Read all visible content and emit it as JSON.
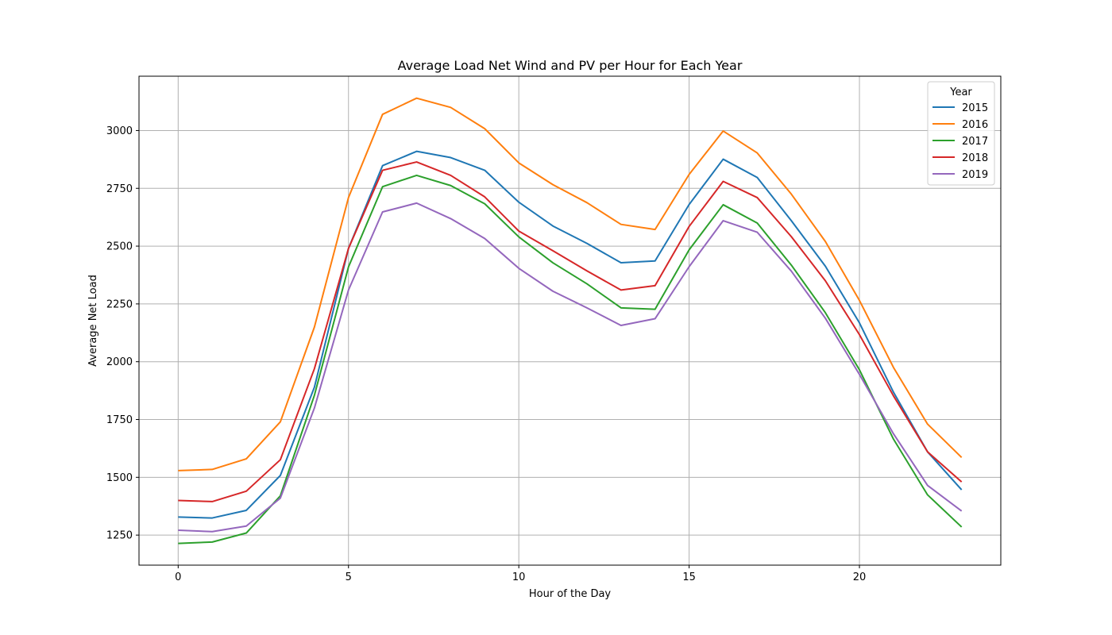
{
  "chart_data": {
    "type": "line",
    "title": "Average Load Net Wind and PV per Hour for Each Year",
    "xlabel": "Hour of the Day",
    "ylabel": "Average Net Load",
    "xlim": [
      -1.15,
      24.15
    ],
    "ylim": [
      1120,
      3235
    ],
    "x_ticks": [
      0,
      5,
      10,
      15,
      20
    ],
    "y_ticks": [
      1250,
      1500,
      1750,
      2000,
      2250,
      2500,
      2750,
      3000
    ],
    "grid": true,
    "legend": {
      "title": "Year",
      "placement": "top-right"
    },
    "x": [
      0,
      1,
      2,
      3,
      4,
      5,
      6,
      7,
      8,
      9,
      10,
      11,
      12,
      13,
      14,
      15,
      16,
      17,
      18,
      19,
      20,
      21,
      22,
      23
    ],
    "series": [
      {
        "name": "2015",
        "color": "#1f77b4",
        "values": [
          1328,
          1324,
          1357,
          1508,
          1890,
          2490,
          2848,
          2910,
          2883,
          2828,
          2690,
          2587,
          2512,
          2428,
          2436,
          2680,
          2876,
          2797,
          2610,
          2413,
          2168,
          1868,
          1610,
          1446
        ]
      },
      {
        "name": "2016",
        "color": "#ff7f0e",
        "values": [
          1529,
          1534,
          1580,
          1740,
          2150,
          2710,
          3070,
          3140,
          3100,
          3008,
          2860,
          2766,
          2688,
          2594,
          2572,
          2810,
          2998,
          2903,
          2725,
          2520,
          2265,
          1975,
          1730,
          1586
        ]
      },
      {
        "name": "2017",
        "color": "#2ca02c",
        "values": [
          1214,
          1220,
          1259,
          1420,
          1855,
          2410,
          2757,
          2806,
          2762,
          2683,
          2540,
          2428,
          2337,
          2233,
          2227,
          2484,
          2679,
          2600,
          2418,
          2212,
          1965,
          1665,
          1424,
          1285
        ]
      },
      {
        "name": "2018",
        "color": "#d62728",
        "values": [
          1400,
          1395,
          1440,
          1576,
          1970,
          2490,
          2828,
          2864,
          2806,
          2713,
          2565,
          2480,
          2393,
          2310,
          2329,
          2585,
          2780,
          2710,
          2541,
          2350,
          2117,
          1852,
          1610,
          1480
        ]
      },
      {
        "name": "2019",
        "color": "#9467bd",
        "values": [
          1271,
          1265,
          1289,
          1410,
          1800,
          2310,
          2648,
          2686,
          2619,
          2533,
          2404,
          2305,
          2233,
          2157,
          2186,
          2411,
          2610,
          2560,
          2392,
          2188,
          1945,
          1688,
          1465,
          1354
        ]
      }
    ]
  }
}
